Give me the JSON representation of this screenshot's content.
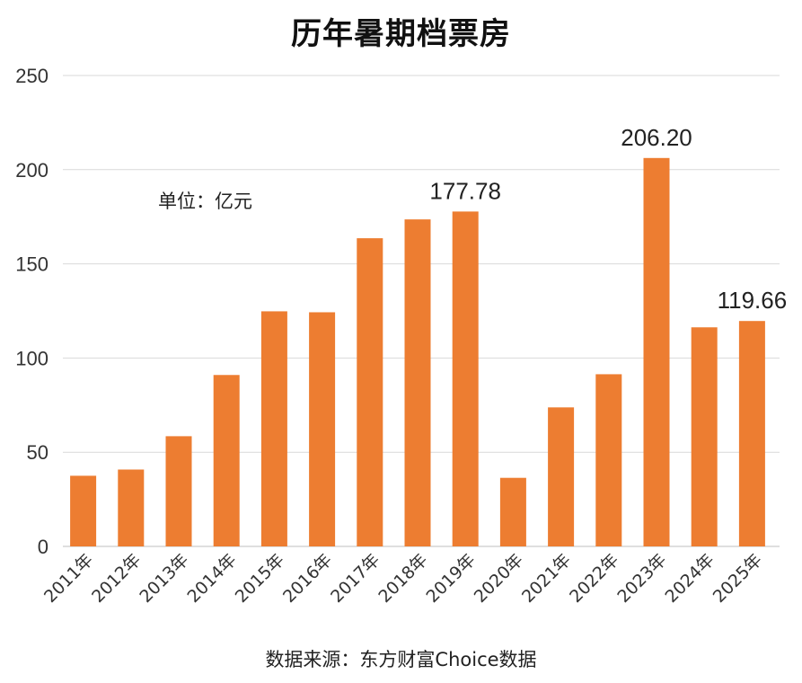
{
  "chart_data": {
    "type": "bar",
    "title": "历年暑期档票房",
    "unit_note": "单位：亿元",
    "source": "数据来源：东方财富Choice数据",
    "categories": [
      "2011年",
      "2012年",
      "2013年",
      "2014年",
      "2015年",
      "2016年",
      "2017年",
      "2018年",
      "2019年",
      "2020年",
      "2021年",
      "2022年",
      "2023年",
      "2024年",
      "2025年"
    ],
    "values": [
      37.5,
      40.8,
      58.5,
      91.0,
      124.8,
      124.3,
      163.6,
      173.6,
      177.78,
      36.4,
      73.8,
      91.4,
      206.2,
      116.3,
      119.66
    ],
    "data_labels": [
      {
        "index": 8,
        "text": "177.78"
      },
      {
        "index": 12,
        "text": "206.20"
      },
      {
        "index": 14,
        "text": "119.66"
      }
    ],
    "ylim": [
      0,
      250
    ],
    "yticks": [
      0,
      50,
      100,
      150,
      200,
      250
    ],
    "grid": true,
    "bar_color": "#ED7D31",
    "grid_color": "#D9D9D9"
  }
}
